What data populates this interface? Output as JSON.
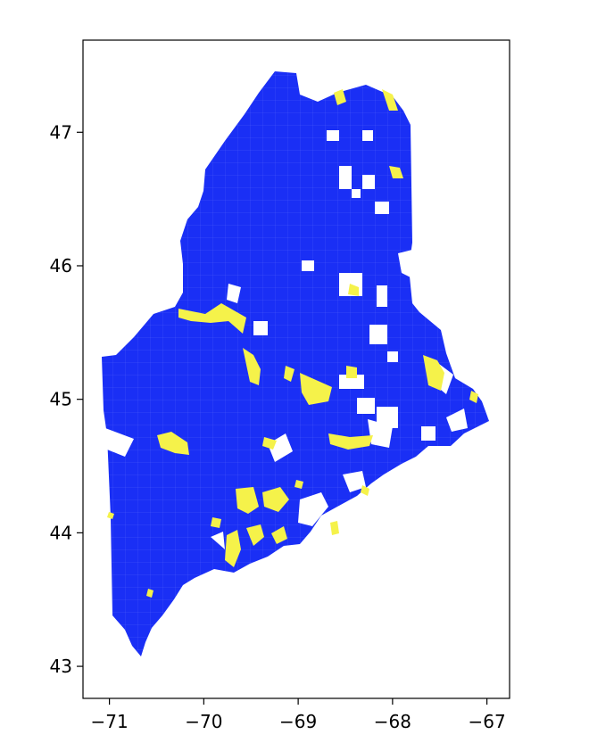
{
  "map": {
    "x_axis": {
      "range": [
        -71.28,
        -66.76
      ],
      "ticks": [
        {
          "value": -71,
          "label": "−71"
        },
        {
          "value": -70,
          "label": "−70"
        },
        {
          "value": -69,
          "label": "−69"
        },
        {
          "value": -68,
          "label": "−68"
        },
        {
          "value": -67,
          "label": "−67"
        }
      ]
    },
    "y_axis": {
      "range": [
        42.76,
        47.69
      ],
      "ticks": [
        {
          "value": 43,
          "label": "43"
        },
        {
          "value": 44,
          "label": "44"
        },
        {
          "value": 45,
          "label": "45"
        },
        {
          "value": 46,
          "label": "46"
        },
        {
          "value": 47,
          "label": "47"
        }
      ]
    },
    "colors": {
      "land": "#1a2ff5",
      "highlight": "#f5f24a",
      "frame": "#000000",
      "background": "#ffffff"
    },
    "grid": false
  }
}
